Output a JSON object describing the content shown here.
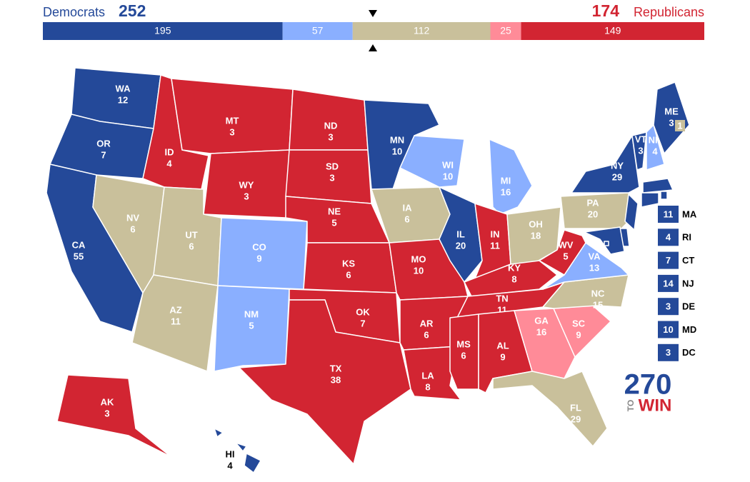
{
  "header": {
    "left_party": "Democrats",
    "left_total": 252,
    "right_total": 174,
    "right_party": "Republicans"
  },
  "colors": {
    "safe_d": "#244999",
    "lean_d": "#8aafff",
    "tossup": "#c9c09b",
    "lean_r": "#ff8b98",
    "safe_r": "#d22532"
  },
  "bar": [
    {
      "value": 195,
      "rating": "safe_d"
    },
    {
      "value": 57,
      "rating": "lean_d"
    },
    {
      "value": 112,
      "rating": "tossup"
    },
    {
      "value": 25,
      "rating": "lean_r"
    },
    {
      "value": 149,
      "rating": "safe_r"
    }
  ],
  "states": [
    {
      "abbr": "WA",
      "votes": 12,
      "rating": "safe_d"
    },
    {
      "abbr": "OR",
      "votes": 7,
      "rating": "safe_d"
    },
    {
      "abbr": "CA",
      "votes": 55,
      "rating": "safe_d"
    },
    {
      "abbr": "ID",
      "votes": 4,
      "rating": "safe_r"
    },
    {
      "abbr": "NV",
      "votes": 6,
      "rating": "tossup"
    },
    {
      "abbr": "MT",
      "votes": 3,
      "rating": "safe_r"
    },
    {
      "abbr": "WY",
      "votes": 3,
      "rating": "safe_r"
    },
    {
      "abbr": "UT",
      "votes": 6,
      "rating": "tossup"
    },
    {
      "abbr": "AZ",
      "votes": 11,
      "rating": "tossup"
    },
    {
      "abbr": "CO",
      "votes": 9,
      "rating": "lean_d"
    },
    {
      "abbr": "NM",
      "votes": 5,
      "rating": "lean_d"
    },
    {
      "abbr": "ND",
      "votes": 3,
      "rating": "safe_r"
    },
    {
      "abbr": "SD",
      "votes": 3,
      "rating": "safe_r"
    },
    {
      "abbr": "NE",
      "votes": 5,
      "rating": "safe_r"
    },
    {
      "abbr": "KS",
      "votes": 6,
      "rating": "safe_r"
    },
    {
      "abbr": "OK",
      "votes": 7,
      "rating": "safe_r"
    },
    {
      "abbr": "TX",
      "votes": 38,
      "rating": "safe_r"
    },
    {
      "abbr": "MN",
      "votes": 10,
      "rating": "safe_d"
    },
    {
      "abbr": "IA",
      "votes": 6,
      "rating": "tossup"
    },
    {
      "abbr": "MO",
      "votes": 10,
      "rating": "safe_r"
    },
    {
      "abbr": "AR",
      "votes": 6,
      "rating": "safe_r"
    },
    {
      "abbr": "LA",
      "votes": 8,
      "rating": "safe_r"
    },
    {
      "abbr": "WI",
      "votes": 10,
      "rating": "lean_d"
    },
    {
      "abbr": "IL",
      "votes": 20,
      "rating": "safe_d"
    },
    {
      "abbr": "MI",
      "votes": 16,
      "rating": "lean_d"
    },
    {
      "abbr": "IN",
      "votes": 11,
      "rating": "safe_r"
    },
    {
      "abbr": "OH",
      "votes": 18,
      "rating": "tossup"
    },
    {
      "abbr": "KY",
      "votes": 8,
      "rating": "safe_r"
    },
    {
      "abbr": "TN",
      "votes": 11,
      "rating": "safe_r"
    },
    {
      "abbr": "MS",
      "votes": 6,
      "rating": "safe_r"
    },
    {
      "abbr": "AL",
      "votes": 9,
      "rating": "safe_r"
    },
    {
      "abbr": "GA",
      "votes": 16,
      "rating": "lean_r"
    },
    {
      "abbr": "FL",
      "votes": 29,
      "rating": "tossup"
    },
    {
      "abbr": "SC",
      "votes": 9,
      "rating": "lean_r"
    },
    {
      "abbr": "NC",
      "votes": 15,
      "rating": "tossup"
    },
    {
      "abbr": "VA",
      "votes": 13,
      "rating": "lean_d"
    },
    {
      "abbr": "WV",
      "votes": 5,
      "rating": "safe_r"
    },
    {
      "abbr": "PA",
      "votes": 20,
      "rating": "tossup"
    },
    {
      "abbr": "NY",
      "votes": 29,
      "rating": "safe_d"
    },
    {
      "abbr": "VT",
      "votes": 3,
      "rating": "safe_d"
    },
    {
      "abbr": "NH",
      "votes": 4,
      "rating": "lean_d"
    },
    {
      "abbr": "ME",
      "votes": 3,
      "rating": "safe_d"
    },
    {
      "abbr": "AK",
      "votes": 3,
      "rating": "safe_r"
    },
    {
      "abbr": "HI",
      "votes": 4,
      "rating": "safe_d"
    }
  ],
  "maine_district": {
    "votes": 1,
    "rating": "tossup"
  },
  "callouts": [
    {
      "abbr": "MA",
      "votes": 11,
      "rating": "safe_d"
    },
    {
      "abbr": "RI",
      "votes": 4,
      "rating": "safe_d"
    },
    {
      "abbr": "CT",
      "votes": 7,
      "rating": "safe_d"
    },
    {
      "abbr": "NJ",
      "votes": 14,
      "rating": "safe_d"
    },
    {
      "abbr": "DE",
      "votes": 3,
      "rating": "safe_d"
    },
    {
      "abbr": "MD",
      "votes": 10,
      "rating": "safe_d"
    },
    {
      "abbr": "DC",
      "votes": 3,
      "rating": "safe_d"
    }
  ],
  "logo": {
    "number": "270",
    "to": "TO",
    "win": "WIN"
  }
}
